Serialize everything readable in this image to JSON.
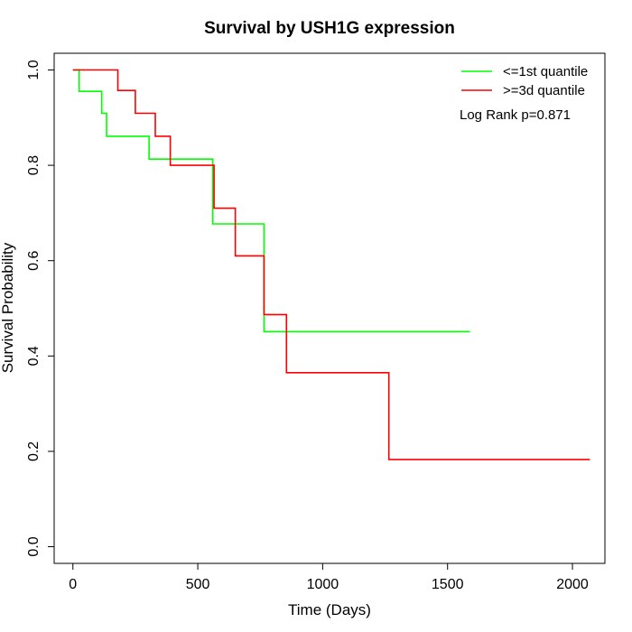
{
  "chart_data": {
    "type": "line",
    "title": "Survival by USH1G expression",
    "xlabel": "Time (Days)",
    "ylabel": "Survival Probability",
    "xlim": [
      -75,
      2130
    ],
    "ylim": [
      -0.035,
      1.035
    ],
    "x_ticks": [
      0,
      500,
      1000,
      1500,
      2000
    ],
    "y_ticks": [
      0.0,
      0.2,
      0.4,
      0.6,
      0.8,
      1.0
    ],
    "x_tick_labels": [
      "0",
      "500",
      "1000",
      "1500",
      "2000"
    ],
    "y_tick_labels": [
      "0.0",
      "0.2",
      "0.4",
      "0.6",
      "0.8",
      "1.0"
    ],
    "legend_position": "top-right",
    "annotation": "Log Rank p=0.871",
    "series": [
      {
        "name": "<=1st quantile",
        "color": "#00ff00",
        "x": [
          0,
          25,
          25,
          115,
          115,
          135,
          135,
          305,
          305,
          560,
          560,
          765,
          765,
          1590
        ],
        "y": [
          1.0,
          1.0,
          0.955,
          0.955,
          0.909,
          0.909,
          0.861,
          0.861,
          0.813,
          0.813,
          0.677,
          0.677,
          0.451,
          0.451
        ]
      },
      {
        "name": ">=3d quantile",
        "color": "#ff0000",
        "x": [
          0,
          180,
          180,
          250,
          250,
          330,
          330,
          390,
          390,
          565,
          565,
          650,
          650,
          765,
          765,
          855,
          855,
          1265,
          1265,
          2070
        ],
        "y": [
          1.0,
          1.0,
          0.957,
          0.957,
          0.909,
          0.909,
          0.861,
          0.861,
          0.8,
          0.8,
          0.71,
          0.71,
          0.61,
          0.61,
          0.487,
          0.487,
          0.365,
          0.365,
          0.183,
          0.183
        ]
      }
    ]
  }
}
